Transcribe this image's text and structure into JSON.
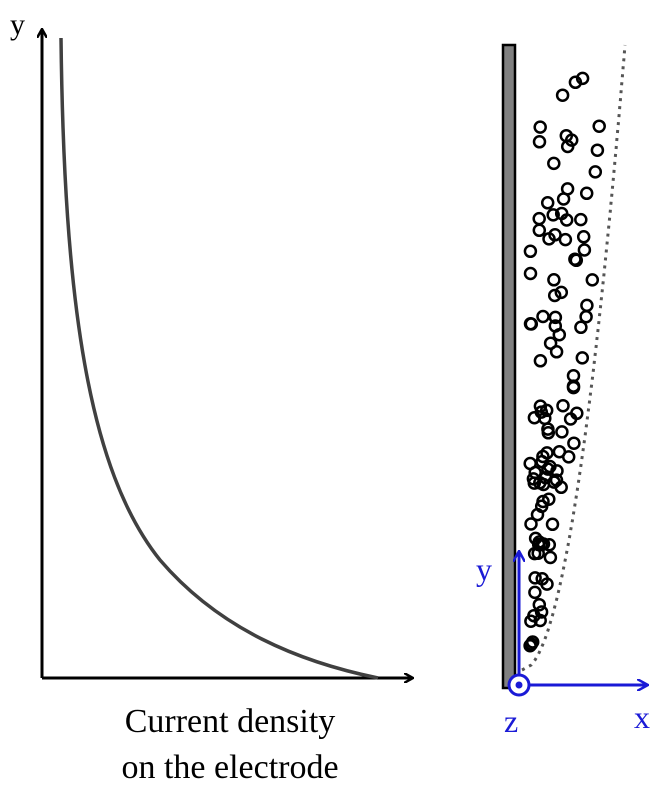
{
  "left_plot": {
    "y_axis_label": "y",
    "x_axis_label_line1": "Current density",
    "x_axis_label_line2": "on the electrode"
  },
  "right_diagram": {
    "y_axis_label": "y",
    "z_axis_label": "z",
    "x_axis_label": "x"
  }
}
